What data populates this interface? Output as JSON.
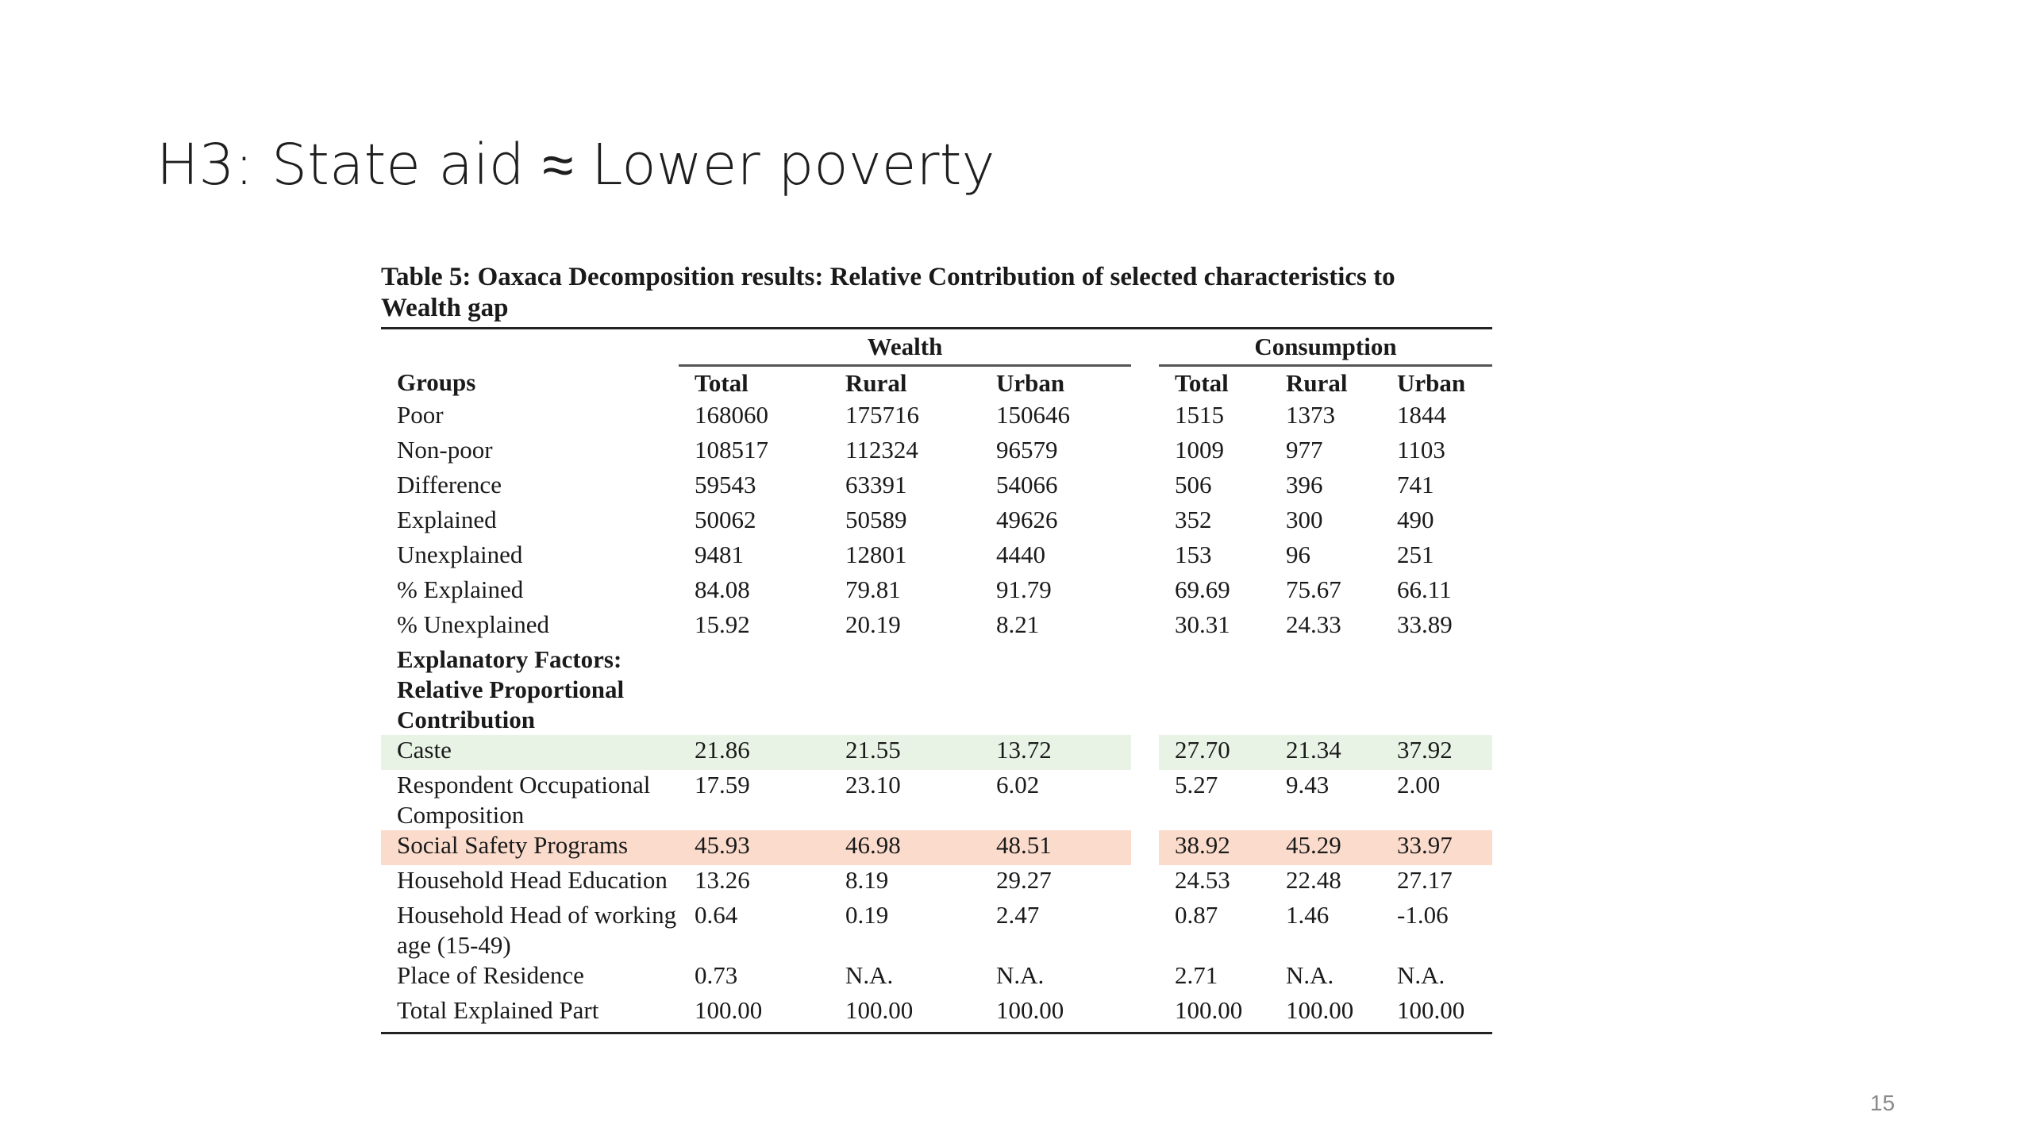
{
  "slide": {
    "title": "H3: State aid ≈ Lower poverty",
    "number": "15"
  },
  "table": {
    "caption": "Table 5: Oaxaca Decomposition results: Relative Contribution of selected characteristics to Wealth gap",
    "group_headers": [
      "Wealth",
      "Consumption"
    ],
    "columns": [
      "Groups",
      "Total",
      "Rural",
      "Urban",
      "Total",
      "Rural",
      "Urban"
    ],
    "rows": [
      {
        "label": "Poor",
        "values": [
          "168060",
          "175716",
          "150646",
          "1515",
          "1373",
          "1844"
        ]
      },
      {
        "label": "Non-poor",
        "values": [
          "108517",
          "112324",
          "96579",
          "1009",
          "977",
          "1103"
        ]
      },
      {
        "label": "Difference",
        "values": [
          "59543",
          "63391",
          "54066",
          "506",
          "396",
          "741"
        ]
      },
      {
        "label": "Explained",
        "values": [
          "50062",
          "50589",
          "49626",
          "352",
          "300",
          "490"
        ]
      },
      {
        "label": "Unexplained",
        "values": [
          "9481",
          "12801",
          "4440",
          "153",
          "96",
          "251"
        ]
      },
      {
        "label": "% Explained",
        "values": [
          "84.08",
          "79.81",
          "91.79",
          "69.69",
          "75.67",
          "66.11"
        ]
      },
      {
        "label": "% Unexplained",
        "values": [
          "15.92",
          "20.19",
          "8.21",
          "30.31",
          "24.33",
          "33.89"
        ]
      }
    ],
    "section_label": "Explanatory Factors: Relative Proportional Contribution",
    "factor_rows": [
      {
        "label": "Caste",
        "highlight": "green",
        "highlight_color": "#e9f3e5",
        "values": [
          "21.86",
          "21.55",
          "13.72",
          "27.70",
          "21.34",
          "37.92"
        ]
      },
      {
        "label": "Respondent Occupational Composition",
        "highlight": "",
        "values": [
          "17.59",
          "23.10",
          "6.02",
          "5.27",
          "9.43",
          "2.00"
        ]
      },
      {
        "label": "Social Safety Programs",
        "highlight": "orange",
        "highlight_color": "#fbdccc",
        "values": [
          "45.93",
          "46.98",
          "48.51",
          "38.92",
          "45.29",
          "33.97"
        ]
      },
      {
        "label": "Household Head Education",
        "highlight": "",
        "values": [
          "13.26",
          "8.19",
          "29.27",
          "24.53",
          "22.48",
          "27.17"
        ]
      },
      {
        "label": "Household Head of working age (15-49)",
        "highlight": "",
        "values": [
          "0.64",
          "0.19",
          "2.47",
          "0.87",
          "1.46",
          "-1.06"
        ]
      },
      {
        "label": "Place of Residence",
        "highlight": "",
        "values": [
          "0.73",
          "N.A.",
          "N.A.",
          "2.71",
          "N.A.",
          "N.A."
        ]
      },
      {
        "label": "Total Explained Part",
        "highlight": "",
        "values": [
          "100.00",
          "100.00",
          "100.00",
          "100.00",
          "100.00",
          "100.00"
        ]
      }
    ]
  }
}
